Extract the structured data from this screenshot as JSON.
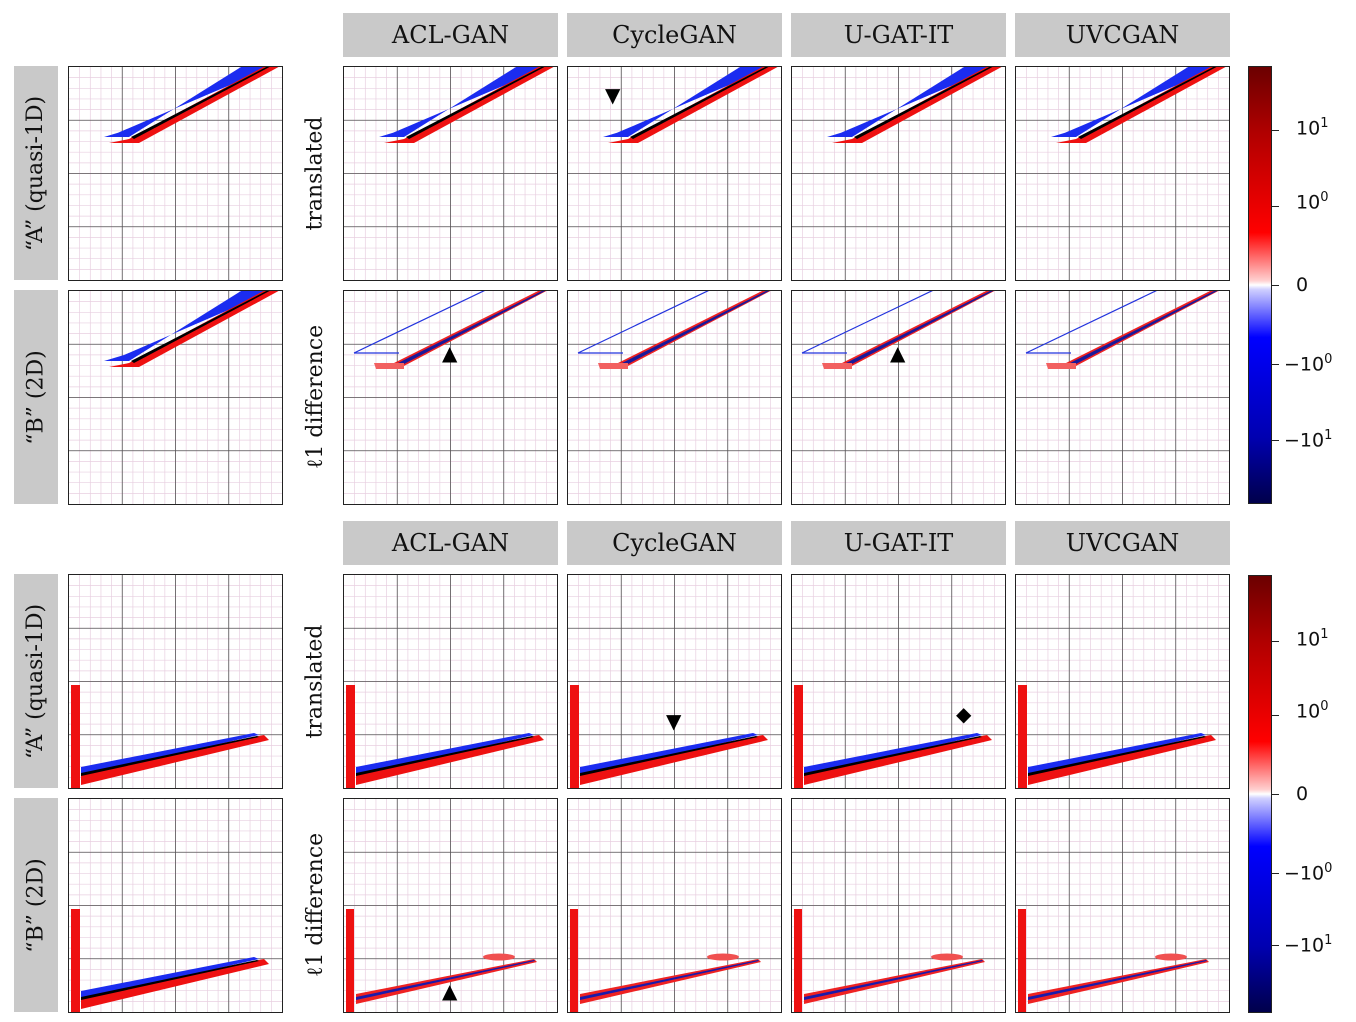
{
  "column_headers": [
    "ACL-GAN",
    "CycleGAN",
    "U-GAT-IT",
    "UVCGAN"
  ],
  "domain_labels": [
    "“A” (quasi-1D)",
    "“B” (2D)"
  ],
  "row_labels": [
    "translated",
    "ℓ1 difference"
  ],
  "colorbar": {
    "ticks": [
      {
        "base": "10",
        "exp": "1"
      },
      {
        "base": "10",
        "exp": "0"
      },
      {
        "base": "0",
        "exp": ""
      },
      {
        "base": "−10",
        "exp": "0"
      },
      {
        "base": "−10",
        "exp": "1"
      }
    ],
    "colors": {
      "max": "#6b0000",
      "pos": "#ff0000",
      "zero": "#ffffff",
      "neg": "#0000ff",
      "min": "#00004b"
    }
  },
  "markers": {
    "triangle_up": "▲",
    "triangle_down": "▼",
    "diamond": "◆"
  }
}
